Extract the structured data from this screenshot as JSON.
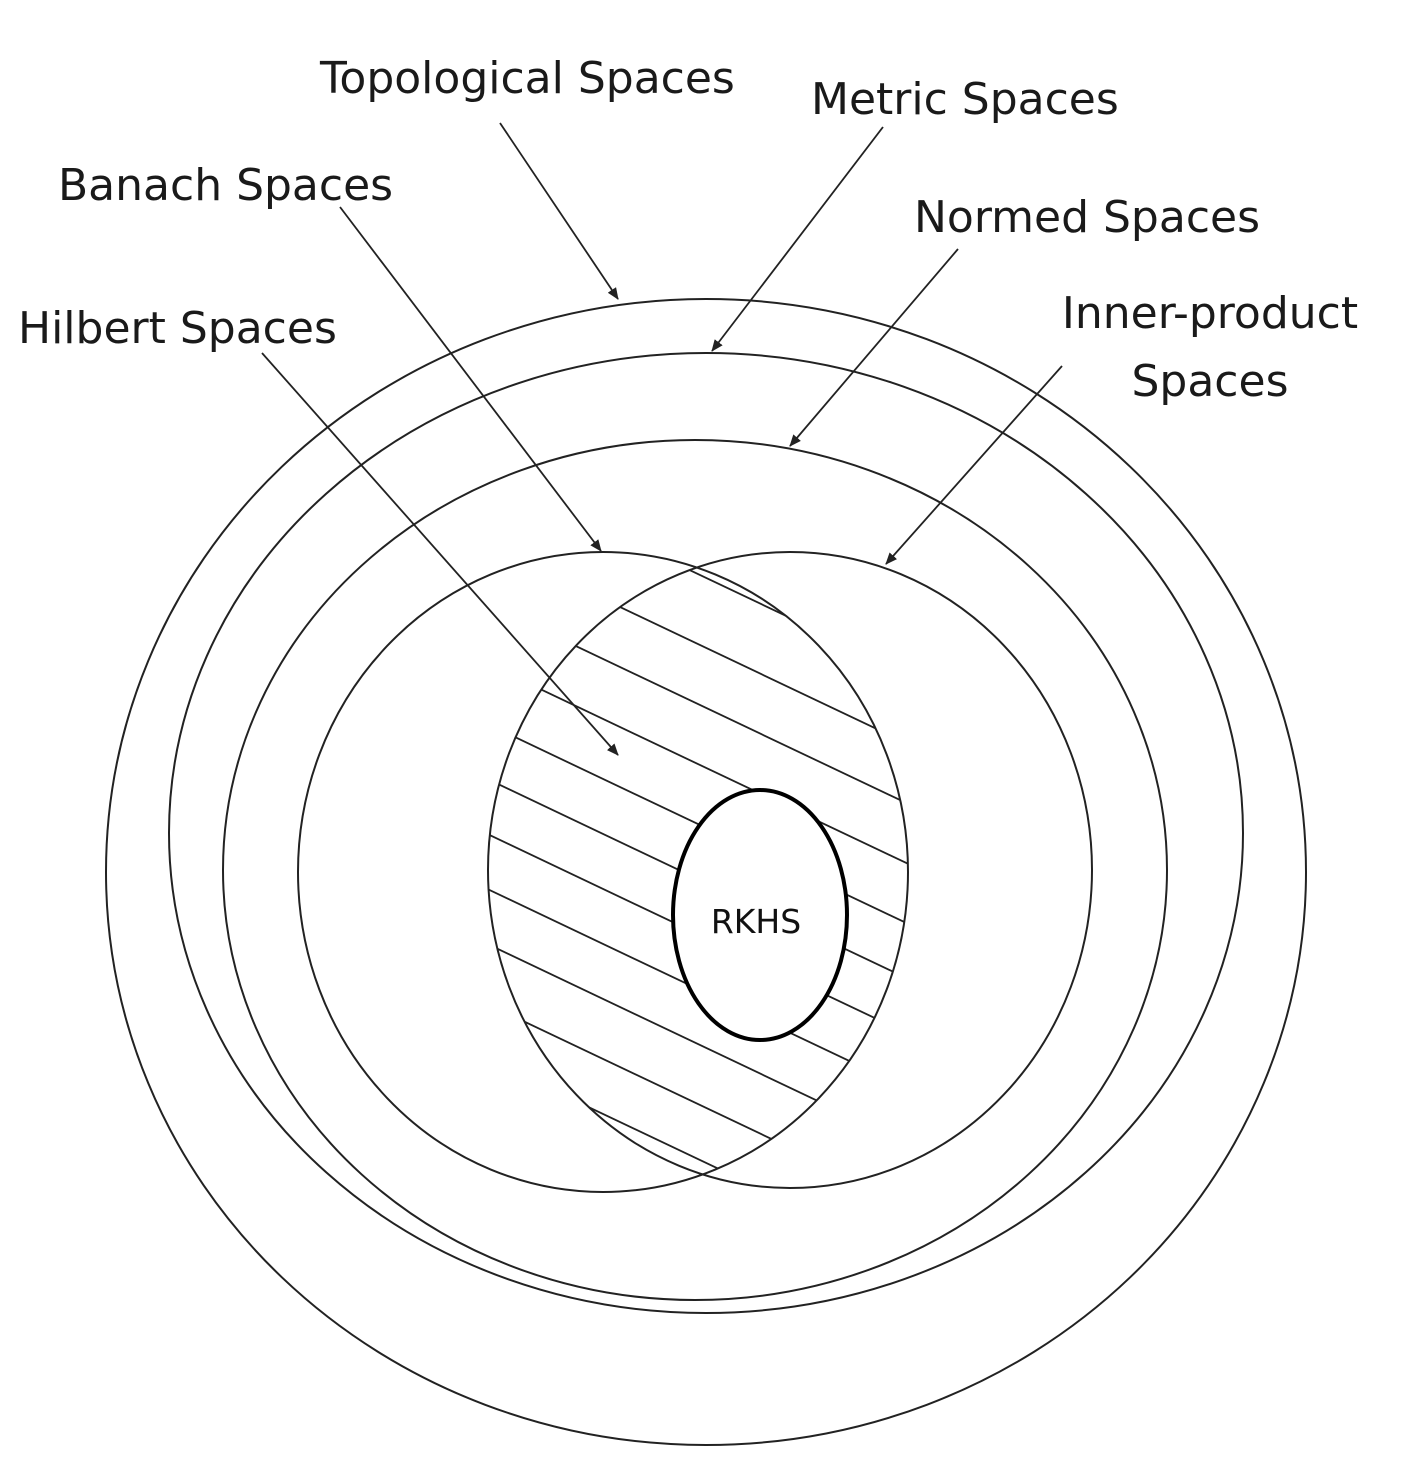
{
  "labels": {
    "topological": "Topological Spaces",
    "metric": "Metric Spaces",
    "banach": "Banach Spaces",
    "normed": "Normed Spaces",
    "hilbert": "Hilbert Spaces",
    "inner_product_line1": "Inner-product",
    "inner_product_line2": "Spaces",
    "rkhs": "RKHS"
  }
}
